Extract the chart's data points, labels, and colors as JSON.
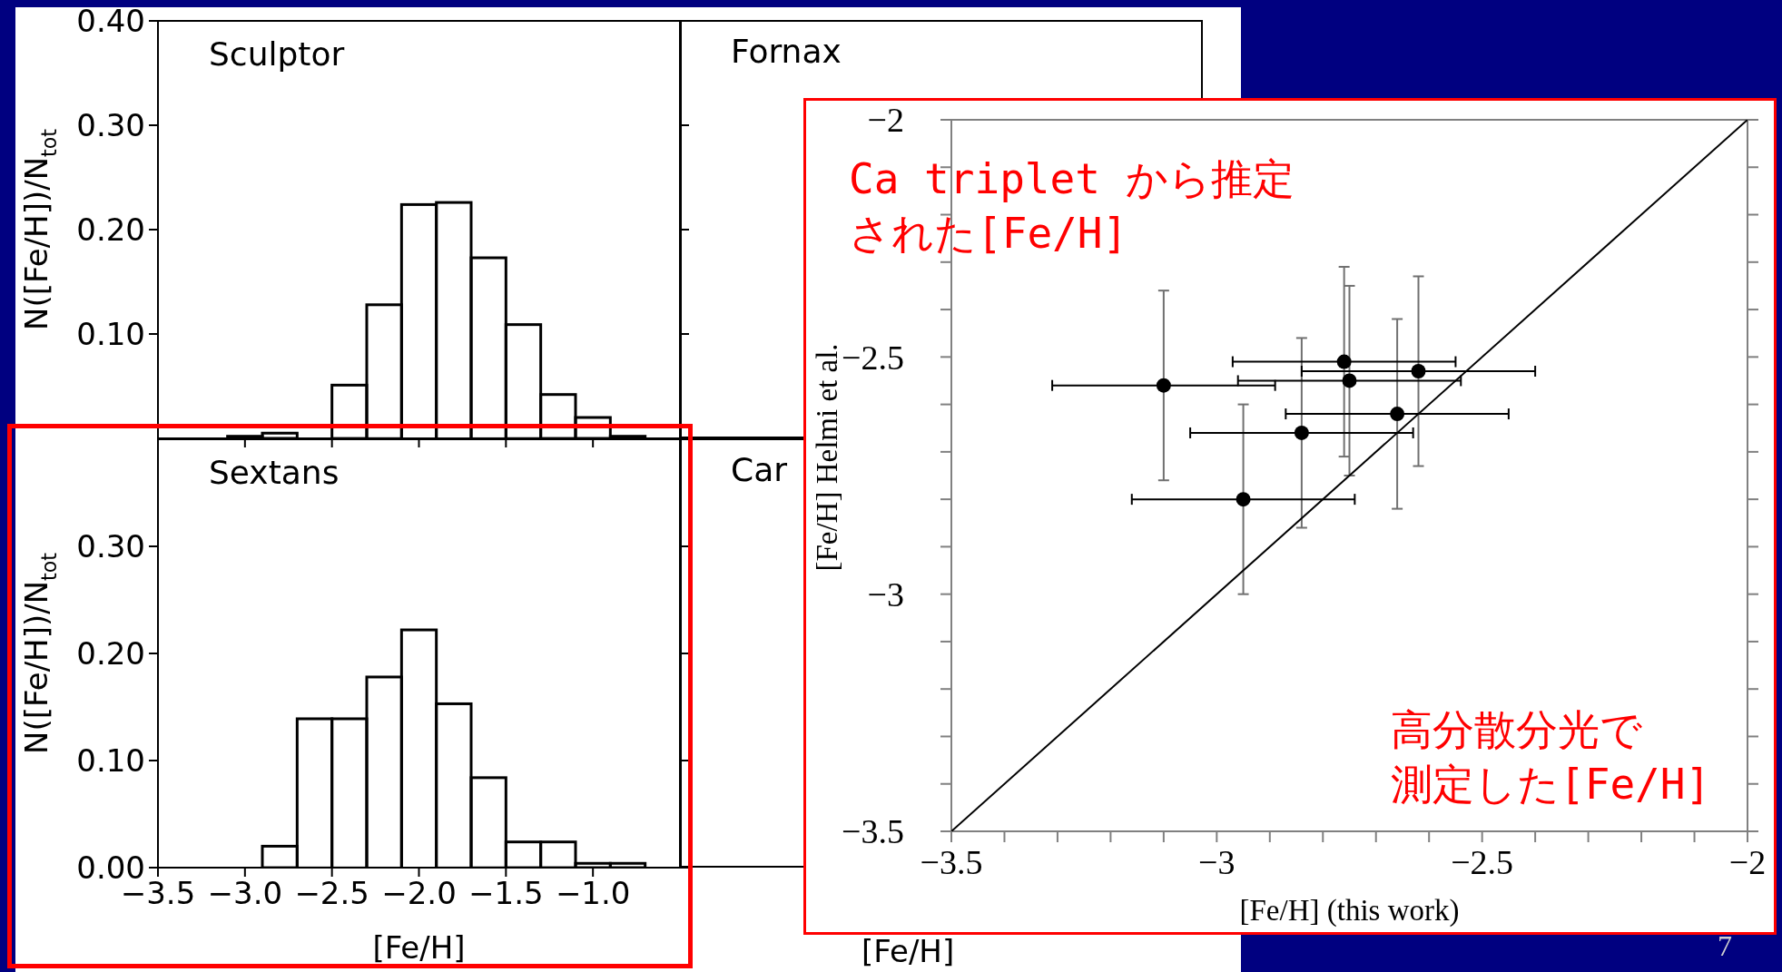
{
  "chart_data": [
    {
      "type": "histogram",
      "title": "Sculptor",
      "ylabel": "N([Fe/H])/N$_{tot}$",
      "color": "#000000",
      "tick_labels": "y",
      "xlim": [
        -3.5,
        -0.5
      ],
      "ylim": [
        0,
        0.4
      ],
      "xticks": [
        {
          "value": -3.5,
          "label": null
        },
        {
          "value": -3.0,
          "label": null
        },
        {
          "value": -2.5,
          "label": null
        },
        {
          "value": -2.0,
          "label": null
        },
        {
          "value": -1.5,
          "label": null
        },
        {
          "value": -1.0,
          "label": null
        }
      ],
      "yticks": [
        {
          "value": 0.1,
          "label": "0.10"
        },
        {
          "value": 0.2,
          "label": "0.20"
        },
        {
          "value": 0.3,
          "label": "0.30"
        },
        {
          "value": 0.4,
          "label": "0.40"
        }
      ],
      "bins": [
        -3.1,
        -2.9,
        -2.7,
        -2.5,
        -2.3,
        -2.1,
        -1.9,
        -1.7,
        -1.5,
        -1.3,
        -1.1,
        -0.9,
        -0.7
      ],
      "values": [
        0.002,
        0.005,
        0,
        0.051,
        0.128,
        0.224,
        0.226,
        0.173,
        0.109,
        0.042,
        0.02,
        0.002
      ]
    },
    {
      "type": "other",
      "title": "Fornax"
    },
    {
      "type": "histogram",
      "title": "Sextans",
      "ylabel": "N([Fe/H])/N$_{tot}$",
      "xlabel": "[Fe/H]",
      "color": "#000000",
      "xlim": [
        -3.5,
        -0.5
      ],
      "ylim": [
        0,
        0.4
      ],
      "xticks": [
        {
          "value": -3.5,
          "label": "−3.5"
        },
        {
          "value": -3.0,
          "label": "−3.0"
        },
        {
          "value": -2.5,
          "label": "−2.5"
        },
        {
          "value": -2.0,
          "label": "−2.0"
        },
        {
          "value": -1.5,
          "label": "−1.5"
        },
        {
          "value": -1.0,
          "label": "−1.0"
        }
      ],
      "yticks": [
        {
          "value": 0,
          "label": "0.00"
        },
        {
          "value": 0.1,
          "label": "0.10"
        },
        {
          "value": 0.2,
          "label": "0.20"
        },
        {
          "value": 0.3,
          "label": "0.30"
        }
      ],
      "bins": [
        -2.9,
        -2.7,
        -2.5,
        -2.3,
        -2.1,
        -1.9,
        -1.7,
        -1.5,
        -1.3,
        -1.1,
        -0.9,
        -0.7
      ],
      "values": [
        0.02,
        0.139,
        0.139,
        0.178,
        0.222,
        0.153,
        0.084,
        0.024,
        0.024,
        0.004,
        0.004
      ]
    },
    {
      "type": "other",
      "title": "Car",
      "xlabel": "[Fe/H]"
    },
    {
      "type": "scatter",
      "xlabel": "[Fe/H] (this work)",
      "ylabel": "[Fe/H] Helmi et al.",
      "xlim": [
        -3.5,
        -2
      ],
      "ylim": [
        -3.5,
        -2
      ],
      "marker": "circle",
      "xticks": [
        {
          "value": -3.5,
          "label": "−3.5"
        },
        {
          "value": -3.4,
          "label": null
        },
        {
          "value": -3.3,
          "label": null
        },
        {
          "value": -3.2,
          "label": null
        },
        {
          "value": -3.1,
          "label": null
        },
        {
          "value": -3,
          "label": "−3"
        },
        {
          "value": -2.9,
          "label": null
        },
        {
          "value": -2.8,
          "label": null
        },
        {
          "value": -2.7,
          "label": null
        },
        {
          "value": -2.6,
          "label": null
        },
        {
          "value": -2.5,
          "label": "−2.5"
        },
        {
          "value": -2.4,
          "label": null
        },
        {
          "value": -2.3,
          "label": null
        },
        {
          "value": -2.2,
          "label": null
        },
        {
          "value": -2.1,
          "label": null
        },
        {
          "value": -2,
          "label": "−2"
        }
      ],
      "yticks": [
        {
          "value": -3.5,
          "label": "−3.5"
        },
        {
          "value": -3.4,
          "label": null
        },
        {
          "value": -3.3,
          "label": null
        },
        {
          "value": -3.2,
          "label": null
        },
        {
          "value": -3.1,
          "label": null
        },
        {
          "value": -3,
          "label": "−3"
        },
        {
          "value": -2.9,
          "label": null
        },
        {
          "value": -2.8,
          "label": null
        },
        {
          "value": -2.7,
          "label": null
        },
        {
          "value": -2.6,
          "label": null
        },
        {
          "value": -2.5,
          "label": "−2.5"
        },
        {
          "value": -2.4,
          "label": null
        },
        {
          "value": -2.3,
          "label": null
        },
        {
          "value": -2.2,
          "label": null
        },
        {
          "value": -2.1,
          "label": null
        },
        {
          "value": -2,
          "label": "−2"
        }
      ],
      "annotations": [
        "Ca triplet から推定",
        "された[Fe/H]",
        "高分散分光で",
        "測定した[Fe/H]",
        "7"
      ],
      "series": [
        {
          "type": "scatter",
          "color": "#000000",
          "x": [
            -3.1,
            -2.95,
            -2.84,
            -2.76,
            -2.75,
            -2.66,
            -2.62
          ],
          "values": [
            -2.56,
            -2.8,
            -2.66,
            -2.51,
            -2.55,
            -2.62,
            -2.53
          ],
          "errors": [
            0.2,
            0.2,
            0.2,
            0.2,
            0.2,
            0.2,
            0.2
          ],
          "xerrors": [
            0.21,
            0.21,
            0.21,
            0.21,
            0.21,
            0.21,
            0.22
          ]
        },
        {
          "type": "line",
          "color": "#000000",
          "marker": "none",
          "x": [
            -3.5,
            -2
          ],
          "values": [
            -3.5,
            -2
          ]
        }
      ]
    }
  ]
}
